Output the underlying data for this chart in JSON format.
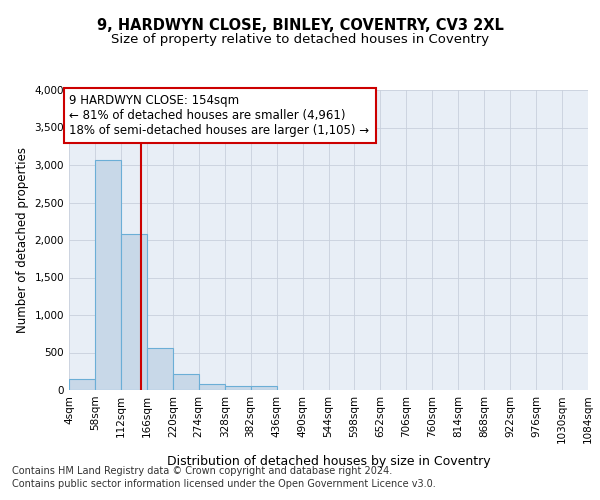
{
  "title": "9, HARDWYN CLOSE, BINLEY, COVENTRY, CV3 2XL",
  "subtitle": "Size of property relative to detached houses in Coventry",
  "xlabel": "Distribution of detached houses by size in Coventry",
  "ylabel": "Number of detached properties",
  "bin_edges": [
    4,
    58,
    112,
    166,
    220,
    274,
    328,
    382,
    436,
    490,
    544,
    598,
    652,
    706,
    760,
    814,
    868,
    922,
    976,
    1030,
    1084
  ],
  "bar_heights": [
    150,
    3070,
    2075,
    560,
    215,
    80,
    55,
    50,
    0,
    0,
    0,
    0,
    0,
    0,
    0,
    0,
    0,
    0,
    0,
    0
  ],
  "bar_color": "#c8d8e8",
  "bar_edge_color": "#6baed6",
  "vline_x": 154,
  "vline_color": "#cc0000",
  "annotation_text": "9 HARDWYN CLOSE: 154sqm\n← 81% of detached houses are smaller (4,961)\n18% of semi-detached houses are larger (1,105) →",
  "annotation_box_color": "#ffffff",
  "annotation_box_edge": "#cc0000",
  "ylim": [
    0,
    4000
  ],
  "yticks": [
    0,
    500,
    1000,
    1500,
    2000,
    2500,
    3000,
    3500,
    4000
  ],
  "grid_color": "#c8d0dc",
  "background_color": "#e8eef6",
  "footer_line1": "Contains HM Land Registry data © Crown copyright and database right 2024.",
  "footer_line2": "Contains public sector information licensed under the Open Government Licence v3.0.",
  "title_fontsize": 10.5,
  "subtitle_fontsize": 9.5,
  "xlabel_fontsize": 9,
  "ylabel_fontsize": 8.5,
  "tick_fontsize": 7.5,
  "footer_fontsize": 7,
  "annotation_fontsize": 8.5
}
